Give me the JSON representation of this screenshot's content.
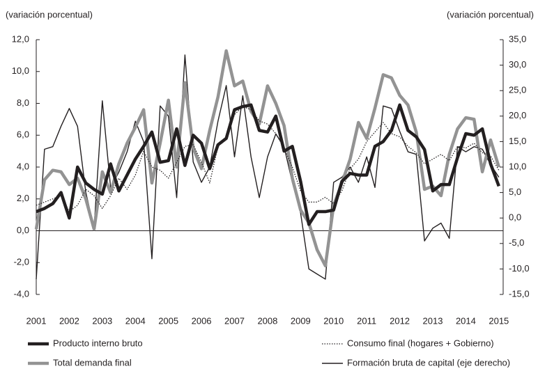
{
  "chart_data": {
    "type": "line",
    "y_label": "(variación porcentual)",
    "y2_label": "(variación porcentual)",
    "x": [
      2001,
      2001.25,
      2001.5,
      2001.75,
      2002,
      2002.25,
      2002.5,
      2002.75,
      2003,
      2003.25,
      2003.5,
      2003.75,
      2004,
      2004.25,
      2004.5,
      2004.75,
      2005,
      2005.25,
      2005.5,
      2005.75,
      2006,
      2006.25,
      2006.5,
      2006.75,
      2007,
      2007.25,
      2007.5,
      2007.75,
      2008,
      2008.25,
      2008.5,
      2008.75,
      2009,
      2009.25,
      2009.5,
      2009.75,
      2010,
      2010.25,
      2010.5,
      2010.75,
      2011,
      2011.25,
      2011.5,
      2011.75,
      2012,
      2012.25,
      2012.5,
      2012.75,
      2013,
      2013.25,
      2013.5,
      2013.75,
      2014,
      2014.25,
      2014.5,
      2014.75,
      2015
    ],
    "xlim": [
      2001,
      2015.13
    ],
    "xticks": [
      2001,
      2002,
      2003,
      2004,
      2005,
      2006,
      2007,
      2008,
      2009,
      2010,
      2011,
      2012,
      2013,
      2014,
      2015
    ],
    "ylim": [
      -4,
      12
    ],
    "yticks": [
      {
        "value": -4,
        "label": "-4,0"
      },
      {
        "value": -2,
        "label": "-2,0"
      },
      {
        "value": 0,
        "label": "0,0"
      },
      {
        "value": 2,
        "label": "2,0"
      },
      {
        "value": 4,
        "label": "4,0"
      },
      {
        "value": 6,
        "label": "6,0"
      },
      {
        "value": 8,
        "label": "8,0"
      },
      {
        "value": 10,
        "label": "10,0"
      },
      {
        "value": 12,
        "label": "12,0"
      }
    ],
    "y2lim": [
      -15,
      35
    ],
    "y2ticks": [
      {
        "value": -15,
        "label": "-15,0"
      },
      {
        "value": -10,
        "label": "-10,0"
      },
      {
        "value": -5,
        "label": "-5,0"
      },
      {
        "value": 0,
        "label": "0,0"
      },
      {
        "value": 5,
        "label": "5,0"
      },
      {
        "value": 10,
        "label": "10,0"
      },
      {
        "value": 15,
        "label": "15,0"
      },
      {
        "value": 20,
        "label": "20,0"
      },
      {
        "value": 25,
        "label": "25,0"
      },
      {
        "value": 30,
        "label": "30,0"
      },
      {
        "value": 35,
        "label": "35,0"
      }
    ],
    "grid": false,
    "series": [
      {
        "name": "Producto interno bruto",
        "color": "#231f20",
        "line_style": "thick",
        "values": [
          1.2,
          1.4,
          1.7,
          2.4,
          0.8,
          4.0,
          3.0,
          2.6,
          2.3,
          4.2,
          2.5,
          3.5,
          4.5,
          5.3,
          6.2,
          4.3,
          4.4,
          6.4,
          4.1,
          6.0,
          5.5,
          3.9,
          5.4,
          5.8,
          7.6,
          7.8,
          7.9,
          6.3,
          6.2,
          7.2,
          5.0,
          5.3,
          3.1,
          0.4,
          1.2,
          1.2,
          1.3,
          3.1,
          3.6,
          3.5,
          3.5,
          5.3,
          5.6,
          6.3,
          7.9,
          6.3,
          5.9,
          5.1,
          2.5,
          2.9,
          2.9,
          4.6,
          6.1,
          6.0,
          6.4,
          4.2,
          2.8
        ]
      },
      {
        "name": "Consumo final (hogares + Gobierno)",
        "color": "#231f20",
        "line_style": "dotted",
        "values": [
          1.6,
          1.8,
          2.0,
          2.2,
          1.2,
          1.6,
          2.6,
          2.2,
          1.4,
          2.2,
          3.3,
          2.6,
          3.5,
          5.0,
          4.0,
          3.8,
          3.3,
          4.3,
          5.3,
          5.4,
          4.3,
          3.0,
          5.3,
          5.8,
          7.3,
          7.8,
          7.6,
          6.9,
          6.7,
          6.1,
          5.2,
          4.0,
          2.5,
          1.8,
          1.8,
          2.1,
          1.7,
          2.5,
          3.9,
          4.5,
          5.6,
          6.2,
          6.8,
          6.1,
          5.9,
          5.3,
          4.9,
          4.2,
          4.5,
          4.8,
          4.4,
          5.3,
          5.2,
          5.5,
          4.9,
          4.7,
          3.8
        ]
      },
      {
        "name": "Total demanda final",
        "color": "#939393",
        "line_style": "thick",
        "values": [
          0.1,
          3.2,
          3.8,
          3.7,
          2.9,
          3.3,
          2.0,
          0.1,
          3.7,
          2.4,
          4.2,
          5.5,
          6.5,
          7.6,
          3.0,
          5.5,
          8.2,
          4.0,
          9.3,
          5.2,
          3.9,
          6.3,
          8.4,
          11.3,
          9.1,
          9.4,
          7.5,
          6.7,
          9.1,
          8.0,
          6.6,
          3.3,
          1.3,
          0.5,
          -1.2,
          -2.2,
          1.6,
          3.0,
          4.5,
          6.8,
          5.8,
          7.7,
          9.8,
          9.6,
          8.5,
          7.9,
          6.2,
          2.6,
          2.8,
          2.2,
          4.8,
          6.4,
          7.1,
          7.0,
          3.7,
          5.7,
          4.0
        ]
      },
      {
        "name": "Formación bruta de capital (eje derecho)",
        "color": "#231f20",
        "line_style": "thin",
        "axis": "y2",
        "values": [
          -12,
          13.5,
          14,
          18,
          21.5,
          18,
          5,
          -2,
          23,
          6,
          9,
          13,
          19,
          15,
          -8,
          22,
          20,
          4,
          32,
          11,
          7,
          10,
          19,
          26,
          12,
          24,
          12,
          4,
          12,
          16.5,
          14,
          7,
          1,
          -10,
          -11,
          -12,
          7,
          8,
          10,
          7,
          12,
          6,
          22,
          21.5,
          17,
          13,
          12.5,
          -4.5,
          -2,
          -1,
          -4,
          14,
          13,
          14,
          13.5,
          10.5,
          8
        ]
      }
    ]
  }
}
